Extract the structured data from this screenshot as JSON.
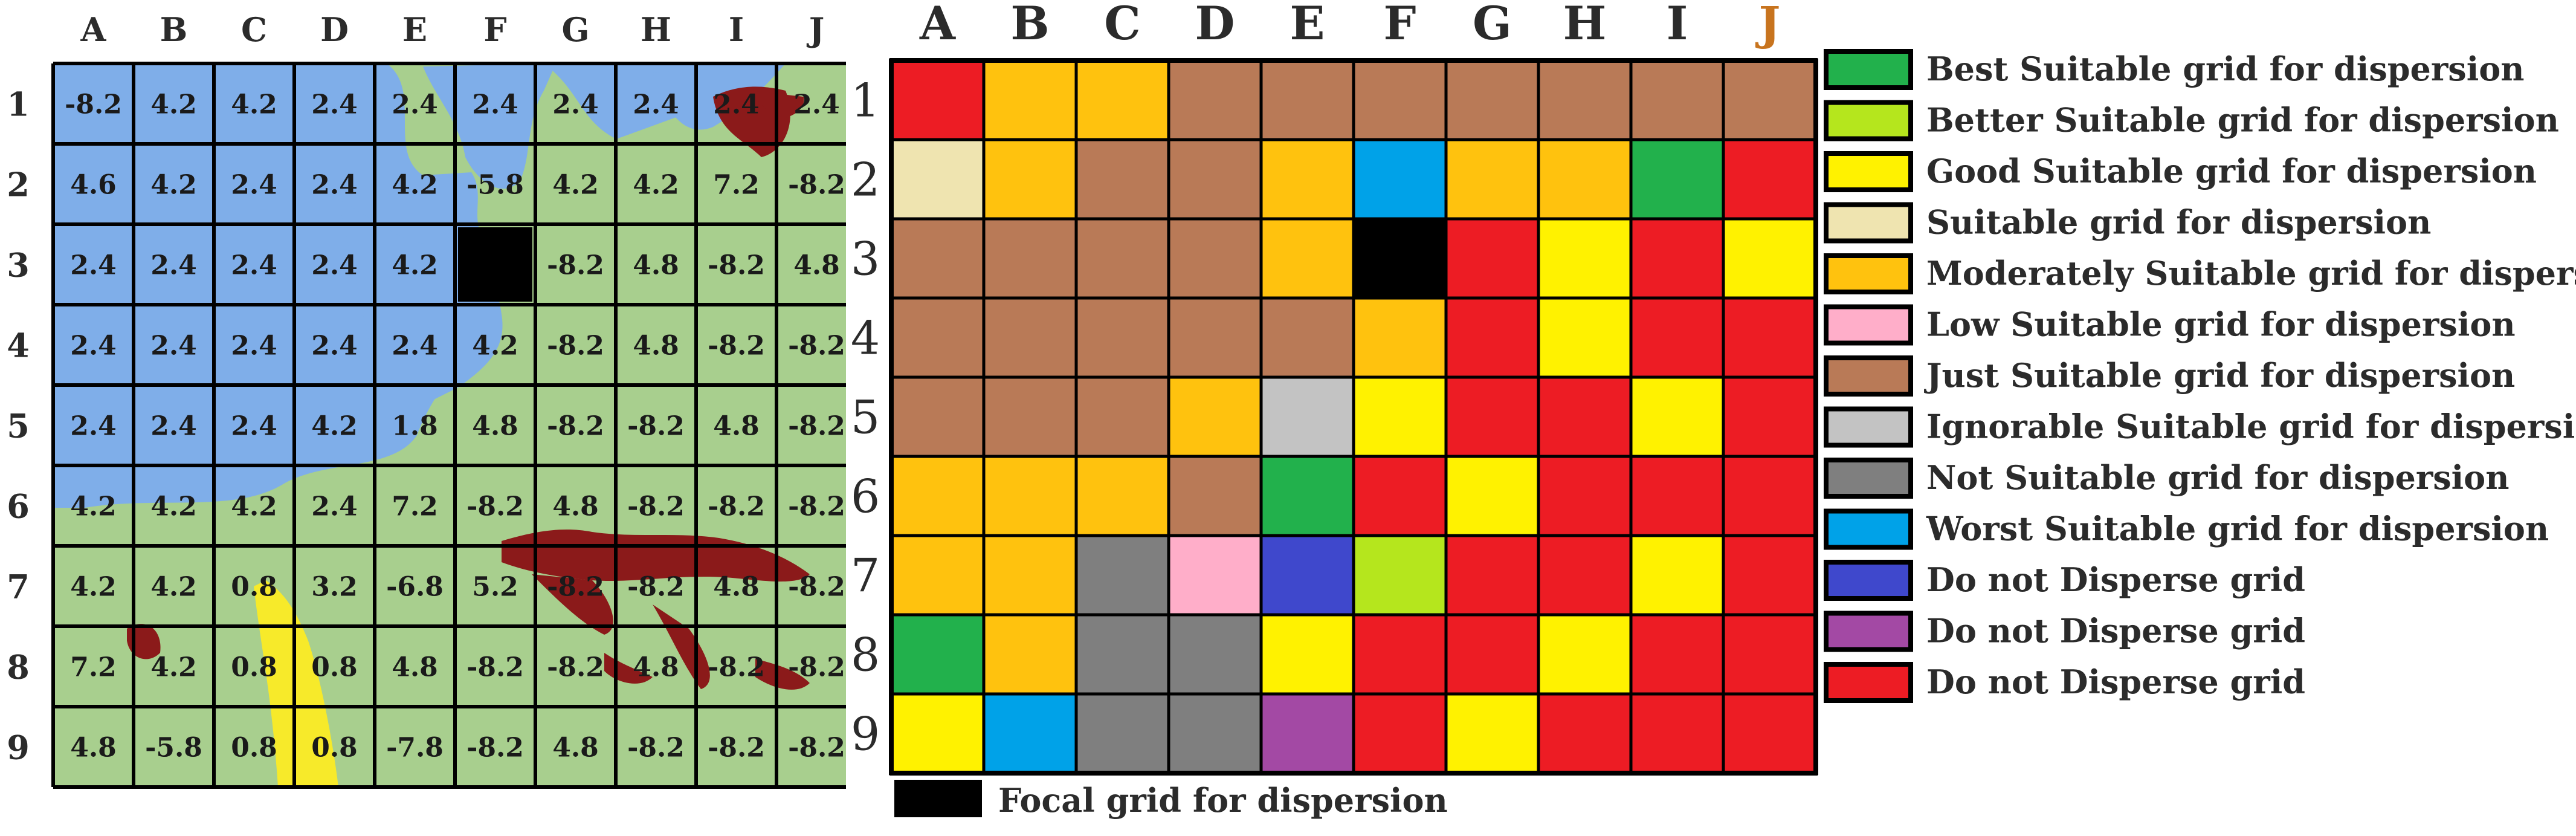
{
  "columns": [
    "A",
    "B",
    "C",
    "D",
    "E",
    "F",
    "G",
    "H",
    "I",
    "J"
  ],
  "rows": [
    "1",
    "2",
    "3",
    "4",
    "5",
    "6",
    "7",
    "8",
    "9"
  ],
  "map_values": [
    [
      "-8.2",
      "4.2",
      "4.2",
      "2.4",
      "2.4",
      "2.4",
      "2.4",
      "2.4",
      "2.4",
      "2.4"
    ],
    [
      "4.6",
      "4.2",
      "2.4",
      "2.4",
      "4.2",
      "-5.8",
      "4.2",
      "4.2",
      "7.2",
      "-8.2"
    ],
    [
      "2.4",
      "2.4",
      "2.4",
      "2.4",
      "4.2",
      "",
      "-8.2",
      "4.8",
      "-8.2",
      "4.8"
    ],
    [
      "2.4",
      "2.4",
      "2.4",
      "2.4",
      "2.4",
      "4.2",
      "-8.2",
      "4.8",
      "-8.2",
      "-8.2"
    ],
    [
      "2.4",
      "2.4",
      "2.4",
      "4.2",
      "1.8",
      "4.8",
      "-8.2",
      "-8.2",
      "4.8",
      "-8.2"
    ],
    [
      "4.2",
      "4.2",
      "4.2",
      "2.4",
      "7.2",
      "-8.2",
      "4.8",
      "-8.2",
      "-8.2",
      "-8.2"
    ],
    [
      "4.2",
      "4.2",
      "0.8",
      "3.2",
      "-6.8",
      "5.2",
      "-8.2",
      "-8.2",
      "4.8",
      "-8.2"
    ],
    [
      "7.2",
      "4.2",
      "0.8",
      "0.8",
      "4.8",
      "-8.2",
      "-8.2",
      "4.8",
      "-8.2",
      "-8.2"
    ],
    [
      "4.8",
      "-5.8",
      "0.8",
      "0.8",
      "-7.8",
      "-8.2",
      "4.8",
      "-8.2",
      "-8.2",
      "-8.2"
    ]
  ],
  "map_colors": {
    "land": "#a8cf8e",
    "water": "#7faee9",
    "urban": "#8b1a1a",
    "road": "#f7ea2a",
    "focal": "#000000"
  },
  "suitability_grid": [
    [
      "red",
      "orange",
      "orange",
      "brown",
      "brown",
      "brown",
      "brown",
      "brown",
      "brown",
      "brown"
    ],
    [
      "cream",
      "orange",
      "brown",
      "brown",
      "orange",
      "blue",
      "orange",
      "orange",
      "green",
      "red"
    ],
    [
      "brown",
      "brown",
      "brown",
      "brown",
      "orange",
      "black",
      "red",
      "yellow",
      "red",
      "yellow"
    ],
    [
      "brown",
      "brown",
      "brown",
      "brown",
      "brown",
      "orange",
      "red",
      "yellow",
      "red",
      "red"
    ],
    [
      "brown",
      "brown",
      "brown",
      "orange",
      "lightgray",
      "yellow",
      "red",
      "red",
      "yellow",
      "red"
    ],
    [
      "orange",
      "orange",
      "orange",
      "brown",
      "green",
      "red",
      "yellow",
      "red",
      "red",
      "red"
    ],
    [
      "orange",
      "orange",
      "gray",
      "pink",
      "navy",
      "lime",
      "red",
      "red",
      "yellow",
      "red"
    ],
    [
      "green",
      "orange",
      "gray",
      "gray",
      "yellow",
      "red",
      "red",
      "yellow",
      "red",
      "red"
    ],
    [
      "yellow",
      "blue",
      "gray",
      "gray",
      "purple",
      "red",
      "yellow",
      "red",
      "red",
      "red"
    ]
  ],
  "palette": {
    "green": "#22b14c",
    "lime": "#b5e61d",
    "yellow": "#fff200",
    "cream": "#efe4b0",
    "orange": "#ffc20e",
    "pink": "#ffaec9",
    "brown": "#b97a57",
    "lightgray": "#c3c3c3",
    "gray": "#7f7f7f",
    "blue": "#00a2e8",
    "navy": "#3f48cc",
    "purple": "#a349a4",
    "red": "#ed1c24",
    "black": "#000000"
  },
  "legend": [
    {
      "color": "green",
      "label": "Best Suitable grid for dispersion"
    },
    {
      "color": "lime",
      "label": "Better Suitable grid for dispersion"
    },
    {
      "color": "yellow",
      "label": "Good Suitable grid for dispersion"
    },
    {
      "color": "cream",
      "label": "Suitable grid for dispersion"
    },
    {
      "color": "orange",
      "label": "Moderately Suitable grid for dispersion"
    },
    {
      "color": "pink",
      "label": "Low Suitable grid for dispersion"
    },
    {
      "color": "brown",
      "label": "Just Suitable grid for dispersion"
    },
    {
      "color": "lightgray",
      "label": "Ignorable Suitable grid for dispersion"
    },
    {
      "color": "gray",
      "label": "Not Suitable grid for dispersion"
    },
    {
      "color": "blue",
      "label": "Worst Suitable grid for dispersion"
    },
    {
      "color": "navy",
      "label": "Do not Disperse grid"
    },
    {
      "color": "purple",
      "label": "Do not Disperse grid"
    },
    {
      "color": "red",
      "label": "Do not Disperse grid"
    }
  ],
  "focal_legend": {
    "color": "black",
    "label": "Focal grid for dispersion"
  },
  "middle_header_accent": "#c8741e"
}
